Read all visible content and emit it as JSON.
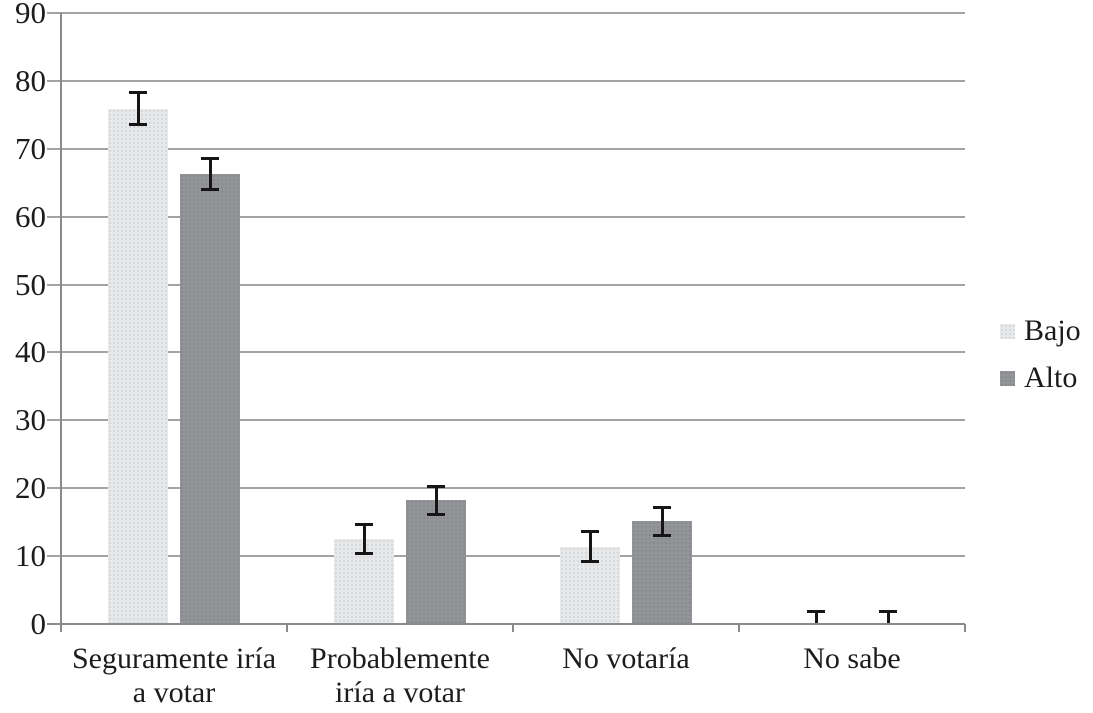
{
  "chart_data": {
    "type": "bar",
    "title": "",
    "xlabel": "",
    "ylabel": "",
    "categories": [
      {
        "label": "Seguramente iría a votar",
        "lines": [
          "Seguramente iría",
          "a votar"
        ]
      },
      {
        "label": "Probablemente iría a votar",
        "lines": [
          "Probablemente",
          "iría a votar"
        ]
      },
      {
        "label": "No votaría",
        "lines": [
          "No votaría"
        ]
      },
      {
        "label": "No sabe",
        "lines": [
          "No sabe"
        ]
      }
    ],
    "series": [
      {
        "name": "Bajo",
        "values": [
          75.9,
          12.5,
          11.4,
          0.15
        ],
        "errors": [
          2.4,
          2.2,
          2.3,
          1.8
        ],
        "color": "#e7e8ea",
        "dot_color": "#d2d3d6"
      },
      {
        "name": "Alto",
        "values": [
          66.3,
          18.2,
          15.1,
          0.15
        ],
        "errors": [
          2.3,
          2.2,
          2.2,
          1.8
        ],
        "color": "#929497",
        "dot_color": "#85878a"
      }
    ],
    "ylim": [
      0,
      90
    ],
    "y_step": 10,
    "y_tick_labels": [
      "0",
      "10",
      "20",
      "30",
      "40",
      "50",
      "60",
      "70",
      "80",
      "90"
    ],
    "grid": true,
    "error_bars": true,
    "legend_position": "right",
    "colors": {
      "gridline": "#a3a3a3",
      "axis": "#8a8a8a",
      "error_bar": "#161616",
      "text": "#1c1c1c",
      "background": "#ffffff"
    }
  }
}
